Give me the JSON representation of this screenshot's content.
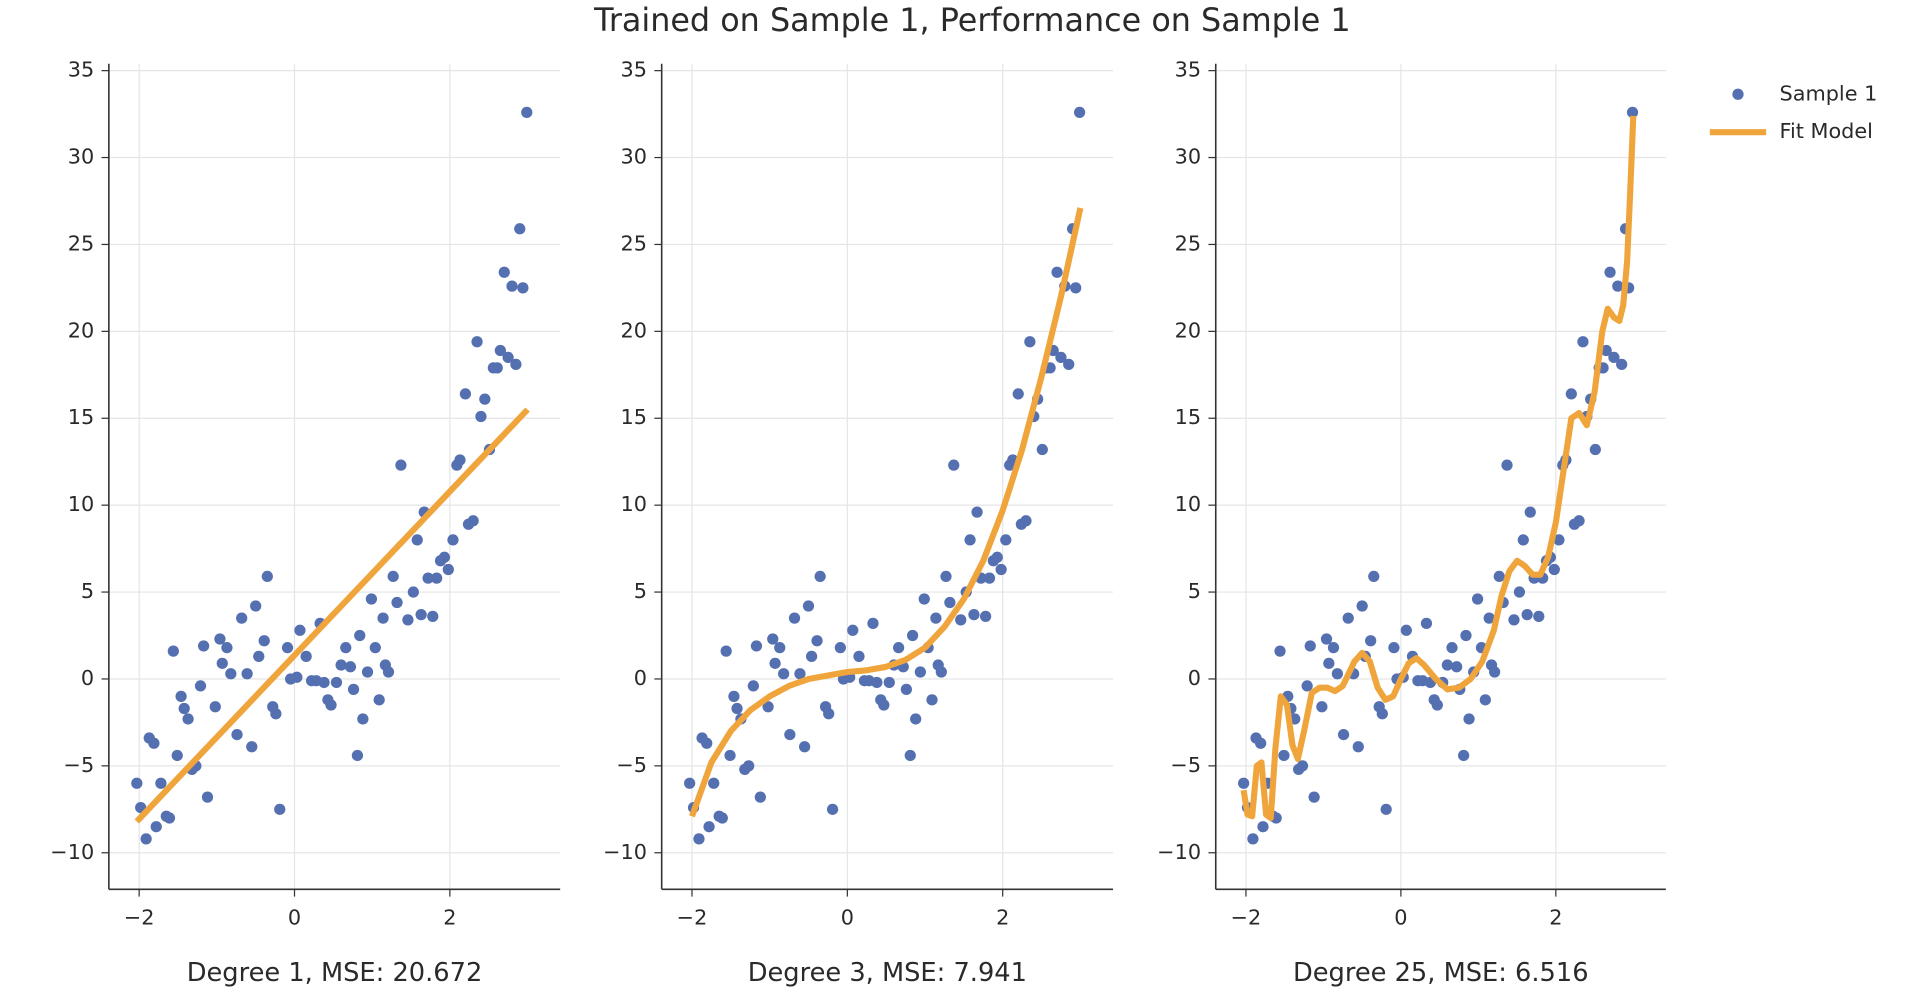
{
  "title": "Trained on Sample 1, Performance on Sample 1",
  "chart_data": [
    {
      "type": "scatter",
      "x_label": "Degree 1, MSE: 20.672",
      "legend": "top-right",
      "grid": true,
      "xlim": [
        -2.39,
        3.42
      ],
      "ylim": [
        -12.1,
        35.4
      ],
      "xticks": [
        {
          "value": -2,
          "label": "−2"
        },
        0,
        2
      ],
      "yticks": [
        {
          "value": -10,
          "label": "−10"
        },
        {
          "value": -5,
          "label": "−5"
        },
        0,
        5,
        10,
        15,
        20,
        25,
        30,
        35
      ],
      "series": [
        {
          "name": "Sample 1",
          "mode": "markers",
          "color": "#5470b0",
          "x": [
            -2.03,
            -1.98,
            -1.91,
            -1.87,
            -1.81,
            -1.78,
            -1.72,
            -1.65,
            -1.61,
            -1.56,
            -1.51,
            -1.46,
            -1.42,
            -1.37,
            -1.32,
            -1.27,
            -1.21,
            -1.17,
            -1.12,
            -1.02,
            -0.96,
            -0.93,
            -0.87,
            -0.82,
            -0.74,
            -0.68,
            -0.61,
            -0.55,
            -0.5,
            -0.46,
            -0.39,
            -0.35,
            -0.28,
            -0.24,
            -0.19,
            -0.09,
            -0.05,
            0.03,
            0.07,
            0.15,
            0.22,
            0.28,
            0.33,
            0.38,
            0.43,
            0.47,
            0.54,
            0.6,
            0.66,
            0.72,
            0.76,
            0.81,
            0.84,
            0.88,
            0.94,
            0.99,
            1.04,
            1.09,
            1.14,
            1.17,
            1.21,
            1.27,
            1.32,
            1.37,
            1.46,
            1.53,
            1.58,
            1.63,
            1.67,
            1.72,
            1.78,
            1.83,
            1.88,
            1.93,
            1.98,
            2.04,
            2.09,
            2.13,
            2.2,
            2.24,
            2.3,
            2.35,
            2.4,
            2.45,
            2.51,
            2.56,
            2.61,
            2.65,
            2.7,
            2.75,
            2.8,
            2.85,
            2.9,
            2.94,
            2.99
          ],
          "values": [
            -6,
            -7.4,
            -9.2,
            -3.4,
            -3.7,
            -8.5,
            -6,
            -7.9,
            -8,
            1.6,
            -4.4,
            -1,
            -1.7,
            -2.3,
            -5.2,
            -5,
            -0.4,
            1.9,
            -6.8,
            -1.6,
            2.3,
            0.9,
            1.8,
            0.3,
            -3.2,
            3.5,
            0.3,
            -3.9,
            4.2,
            1.3,
            2.2,
            5.9,
            -1.6,
            -2,
            -7.5,
            1.8,
            0,
            0.1,
            2.8,
            1.3,
            -0.1,
            -0.1,
            3.2,
            -0.2,
            -1.2,
            -1.5,
            -0.2,
            0.8,
            1.8,
            0.7,
            -0.6,
            -4.4,
            2.5,
            -2.3,
            0.4,
            4.6,
            1.8,
            -1.2,
            3.5,
            0.8,
            0.4,
            5.9,
            4.4,
            12.3,
            3.4,
            5,
            8,
            3.7,
            9.6,
            5.8,
            3.6,
            5.8,
            6.8,
            7,
            6.3,
            8,
            12.3,
            12.6,
            16.4,
            8.9,
            9.1,
            19.4,
            15.1,
            16.1,
            13.2,
            17.9,
            17.9,
            18.9,
            23.4,
            18.5,
            22.6,
            18.1,
            25.9,
            22.5,
            32.6
          ]
        },
        {
          "name": "Fit Model",
          "mode": "lines",
          "color": "#f0a53c",
          "x": [
            -2.03,
            3.0
          ],
          "values": [
            -8.2,
            15.5
          ]
        }
      ]
    },
    {
      "type": "scatter",
      "x_label": "Degree 3, MSE: 7.941",
      "grid": true,
      "xlim": [
        -2.39,
        3.42
      ],
      "ylim": [
        -12.1,
        35.4
      ],
      "xticks": [
        {
          "value": -2,
          "label": "−2"
        },
        0,
        2
      ],
      "yticks": [
        {
          "value": -10,
          "label": "−10"
        },
        {
          "value": -5,
          "label": "−5"
        },
        0,
        5,
        10,
        15,
        20,
        25,
        30,
        35
      ],
      "series": [
        {
          "mode": "markers",
          "color": "#5470b0",
          "x": [
            -2.03,
            -1.98,
            -1.91,
            -1.87,
            -1.81,
            -1.78,
            -1.72,
            -1.65,
            -1.61,
            -1.56,
            -1.51,
            -1.46,
            -1.42,
            -1.37,
            -1.32,
            -1.27,
            -1.21,
            -1.17,
            -1.12,
            -1.02,
            -0.96,
            -0.93,
            -0.87,
            -0.82,
            -0.74,
            -0.68,
            -0.61,
            -0.55,
            -0.5,
            -0.46,
            -0.39,
            -0.35,
            -0.28,
            -0.24,
            -0.19,
            -0.09,
            -0.05,
            0.03,
            0.07,
            0.15,
            0.22,
            0.28,
            0.33,
            0.38,
            0.43,
            0.47,
            0.54,
            0.6,
            0.66,
            0.72,
            0.76,
            0.81,
            0.84,
            0.88,
            0.94,
            0.99,
            1.04,
            1.09,
            1.14,
            1.17,
            1.21,
            1.27,
            1.32,
            1.37,
            1.46,
            1.53,
            1.58,
            1.63,
            1.67,
            1.72,
            1.78,
            1.83,
            1.88,
            1.93,
            1.98,
            2.04,
            2.09,
            2.13,
            2.2,
            2.24,
            2.3,
            2.35,
            2.4,
            2.45,
            2.51,
            2.56,
            2.61,
            2.65,
            2.7,
            2.75,
            2.8,
            2.85,
            2.9,
            2.94,
            2.99
          ],
          "values": [
            -6,
            -7.4,
            -9.2,
            -3.4,
            -3.7,
            -8.5,
            -6,
            -7.9,
            -8,
            1.6,
            -4.4,
            -1,
            -1.7,
            -2.3,
            -5.2,
            -5,
            -0.4,
            1.9,
            -6.8,
            -1.6,
            2.3,
            0.9,
            1.8,
            0.3,
            -3.2,
            3.5,
            0.3,
            -3.9,
            4.2,
            1.3,
            2.2,
            5.9,
            -1.6,
            -2,
            -7.5,
            1.8,
            0,
            0.1,
            2.8,
            1.3,
            -0.1,
            -0.1,
            3.2,
            -0.2,
            -1.2,
            -1.5,
            -0.2,
            0.8,
            1.8,
            0.7,
            -0.6,
            -4.4,
            2.5,
            -2.3,
            0.4,
            4.6,
            1.8,
            -1.2,
            3.5,
            0.8,
            0.4,
            5.9,
            4.4,
            12.3,
            3.4,
            5,
            8,
            3.7,
            9.6,
            5.8,
            3.6,
            5.8,
            6.8,
            7,
            6.3,
            8,
            12.3,
            12.6,
            16.4,
            8.9,
            9.1,
            19.4,
            15.1,
            16.1,
            13.2,
            17.9,
            17.9,
            18.9,
            23.4,
            18.5,
            22.6,
            18.1,
            25.9,
            22.5,
            32.6
          ]
        },
        {
          "mode": "lines",
          "color": "#f0a53c",
          "x": [
            -2.0,
            -1.75,
            -1.5,
            -1.25,
            -1.0,
            -0.75,
            -0.5,
            -0.25,
            0,
            0.25,
            0.5,
            0.75,
            1.0,
            1.25,
            1.5,
            1.75,
            2.0,
            2.25,
            2.5,
            2.75,
            3.0
          ],
          "values": [
            -7.9,
            -4.8,
            -3.0,
            -1.8,
            -1.0,
            -0.4,
            0.0,
            0.2,
            0.4,
            0.5,
            0.7,
            1.1,
            1.8,
            3.0,
            4.6,
            6.8,
            9.7,
            13.2,
            17.4,
            22.0,
            27.1
          ]
        }
      ]
    },
    {
      "type": "scatter",
      "x_label": "Degree 25, MSE: 6.516",
      "grid": true,
      "xlim": [
        -2.39,
        3.42
      ],
      "ylim": [
        -12.1,
        35.4
      ],
      "xticks": [
        {
          "value": -2,
          "label": "−2"
        },
        0,
        2
      ],
      "yticks": [
        {
          "value": -10,
          "label": "−10"
        },
        {
          "value": -5,
          "label": "−5"
        },
        0,
        5,
        10,
        15,
        20,
        25,
        30,
        35
      ],
      "series": [
        {
          "mode": "markers",
          "color": "#5470b0",
          "x": [
            -2.03,
            -1.98,
            -1.91,
            -1.87,
            -1.81,
            -1.78,
            -1.72,
            -1.65,
            -1.61,
            -1.56,
            -1.51,
            -1.46,
            -1.42,
            -1.37,
            -1.32,
            -1.27,
            -1.21,
            -1.17,
            -1.12,
            -1.02,
            -0.96,
            -0.93,
            -0.87,
            -0.82,
            -0.74,
            -0.68,
            -0.61,
            -0.55,
            -0.5,
            -0.46,
            -0.39,
            -0.35,
            -0.28,
            -0.24,
            -0.19,
            -0.09,
            -0.05,
            0.03,
            0.07,
            0.15,
            0.22,
            0.28,
            0.33,
            0.38,
            0.43,
            0.47,
            0.54,
            0.6,
            0.66,
            0.72,
            0.76,
            0.81,
            0.84,
            0.88,
            0.94,
            0.99,
            1.04,
            1.09,
            1.14,
            1.17,
            1.21,
            1.27,
            1.32,
            1.37,
            1.46,
            1.53,
            1.58,
            1.63,
            1.67,
            1.72,
            1.78,
            1.83,
            1.88,
            1.93,
            1.98,
            2.04,
            2.09,
            2.13,
            2.2,
            2.24,
            2.3,
            2.35,
            2.4,
            2.45,
            2.51,
            2.56,
            2.61,
            2.65,
            2.7,
            2.75,
            2.8,
            2.85,
            2.9,
            2.94,
            2.99
          ],
          "values": [
            -6,
            -7.4,
            -9.2,
            -3.4,
            -3.7,
            -8.5,
            -6,
            -7.9,
            -8,
            1.6,
            -4.4,
            -1,
            -1.7,
            -2.3,
            -5.2,
            -5,
            -0.4,
            1.9,
            -6.8,
            -1.6,
            2.3,
            0.9,
            1.8,
            0.3,
            -3.2,
            3.5,
            0.3,
            -3.9,
            4.2,
            1.3,
            2.2,
            5.9,
            -1.6,
            -2,
            -7.5,
            1.8,
            0,
            0.1,
            2.8,
            1.3,
            -0.1,
            -0.1,
            3.2,
            -0.2,
            -1.2,
            -1.5,
            -0.2,
            0.8,
            1.8,
            0.7,
            -0.6,
            -4.4,
            2.5,
            -2.3,
            0.4,
            4.6,
            1.8,
            -1.2,
            3.5,
            0.8,
            0.4,
            5.9,
            4.4,
            12.3,
            3.4,
            5,
            8,
            3.7,
            9.6,
            5.8,
            3.6,
            5.8,
            6.8,
            7,
            6.3,
            8,
            12.3,
            12.6,
            16.4,
            8.9,
            9.1,
            19.4,
            15.1,
            16.1,
            13.2,
            17.9,
            17.9,
            18.9,
            23.4,
            18.5,
            22.6,
            18.1,
            25.9,
            22.5,
            32.6
          ]
        },
        {
          "mode": "lines",
          "color": "#f0a53c",
          "x": [
            -2.03,
            -1.98,
            -1.92,
            -1.86,
            -1.8,
            -1.74,
            -1.68,
            -1.62,
            -1.55,
            -1.47,
            -1.4,
            -1.33,
            -1.25,
            -1.15,
            -1.05,
            -0.95,
            -0.85,
            -0.75,
            -0.6,
            -0.5,
            -0.4,
            -0.3,
            -0.2,
            -0.1,
            0,
            0.1,
            0.2,
            0.3,
            0.45,
            0.6,
            0.75,
            0.9,
            1.05,
            1.2,
            1.3,
            1.4,
            1.5,
            1.6,
            1.7,
            1.8,
            1.9,
            2.0,
            2.1,
            2.2,
            2.3,
            2.4,
            2.5,
            2.6,
            2.67,
            2.75,
            2.82,
            2.87,
            2.92,
            2.96,
            3.0
          ],
          "values": [
            -6.4,
            -7.8,
            -7.9,
            -5.0,
            -4.8,
            -7.8,
            -8.0,
            -4.0,
            -1.0,
            -1.5,
            -3.8,
            -4.6,
            -3.0,
            -0.8,
            -0.5,
            -0.5,
            -0.7,
            -0.4,
            1.0,
            1.5,
            1.0,
            -0.5,
            -1.2,
            -1.0,
            0,
            0.9,
            1.2,
            0.8,
            0,
            -0.6,
            -0.5,
            0,
            1.0,
            2.8,
            4.8,
            6.2,
            6.8,
            6.5,
            6.0,
            6.0,
            7.0,
            9.0,
            12.0,
            15.0,
            15.3,
            14.6,
            16.5,
            20.0,
            21.3,
            20.8,
            20.6,
            21.5,
            24.0,
            28.0,
            32.4
          ]
        }
      ]
    }
  ]
}
